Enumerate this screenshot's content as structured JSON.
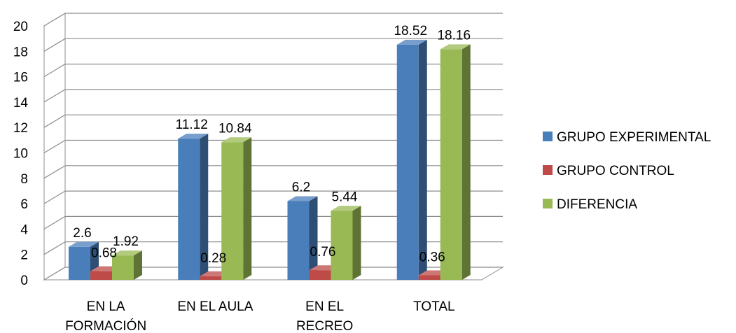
{
  "chart_data": {
    "type": "bar",
    "categories": [
      [
        "EN LA",
        "FORMACIÓN"
      ],
      [
        "EN EL AULA"
      ],
      [
        "EN EL",
        "RECREO"
      ],
      [
        "TOTAL"
      ]
    ],
    "series": [
      {
        "name": "GRUPO EXPERIMENTAL",
        "values": [
          2.6,
          11.12,
          6.2,
          18.52
        ],
        "labels": [
          "2.6",
          "11.12",
          "6.2",
          "18.52"
        ],
        "color": "#4a7ebb"
      },
      {
        "name": "GRUPO CONTROL",
        "values": [
          0.68,
          0.28,
          0.76,
          0.36
        ],
        "labels": [
          "0.68",
          "0.28",
          "0.76",
          "0.36"
        ],
        "color": "#be4b48"
      },
      {
        "name": "DIFERENCIA",
        "values": [
          1.92,
          10.84,
          5.44,
          18.16
        ],
        "labels": [
          "1.92",
          "10.84",
          "5.44",
          "18.16"
        ],
        "color": "#98b954"
      }
    ],
    "ylim": [
      0,
      20
    ],
    "yticks": [
      0,
      2,
      4,
      6,
      8,
      10,
      12,
      14,
      16,
      18,
      20
    ],
    "grid": true,
    "legend": "right",
    "style": "3d-column"
  }
}
